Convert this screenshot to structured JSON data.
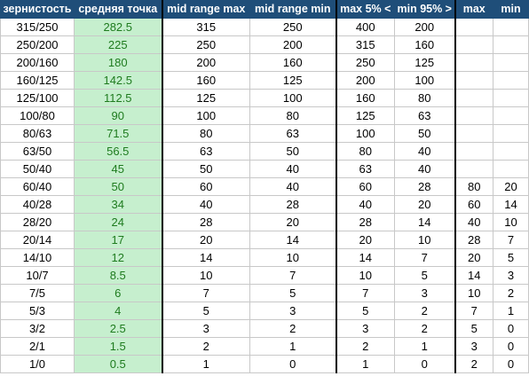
{
  "headers": [
    "зернистость",
    "средняя точка",
    "mid range max",
    "mid range min",
    "max 5% <",
    "min 95% >",
    "max",
    "min"
  ],
  "rows": [
    [
      "315/250",
      "282.5",
      "315",
      "250",
      "400",
      "200",
      "",
      ""
    ],
    [
      "250/200",
      "225",
      "250",
      "200",
      "315",
      "160",
      "",
      ""
    ],
    [
      "200/160",
      "180",
      "200",
      "160",
      "250",
      "125",
      "",
      ""
    ],
    [
      "160/125",
      "142.5",
      "160",
      "125",
      "200",
      "100",
      "",
      ""
    ],
    [
      "125/100",
      "112.5",
      "125",
      "100",
      "160",
      "80",
      "",
      ""
    ],
    [
      "100/80",
      "90",
      "100",
      "80",
      "125",
      "63",
      "",
      ""
    ],
    [
      "80/63",
      "71.5",
      "80",
      "63",
      "100",
      "50",
      "",
      ""
    ],
    [
      "63/50",
      "56.5",
      "63",
      "50",
      "80",
      "40",
      "",
      ""
    ],
    [
      "50/40",
      "45",
      "50",
      "40",
      "63",
      "40",
      "",
      ""
    ],
    [
      "60/40",
      "50",
      "60",
      "40",
      "60",
      "28",
      "80",
      "20"
    ],
    [
      "40/28",
      "34",
      "40",
      "28",
      "40",
      "20",
      "60",
      "14"
    ],
    [
      "28/20",
      "24",
      "28",
      "20",
      "28",
      "14",
      "40",
      "10"
    ],
    [
      "20/14",
      "17",
      "20",
      "14",
      "20",
      "10",
      "28",
      "7"
    ],
    [
      "14/10",
      "12",
      "14",
      "10",
      "14",
      "7",
      "20",
      "5"
    ],
    [
      "10/7",
      "8.5",
      "10",
      "7",
      "10",
      "5",
      "14",
      "3"
    ],
    [
      "7/5",
      "6",
      "7",
      "5",
      "7",
      "3",
      "10",
      "2"
    ],
    [
      "5/3",
      "4",
      "5",
      "3",
      "5",
      "2",
      "7",
      "1"
    ],
    [
      "3/2",
      "2.5",
      "3",
      "2",
      "3",
      "2",
      "5",
      "0"
    ],
    [
      "2/1",
      "1.5",
      "2",
      "1",
      "2",
      "1",
      "3",
      "0"
    ],
    [
      "1/0",
      "0.5",
      "1",
      "0",
      "1",
      "0",
      "2",
      "0"
    ]
  ],
  "colors": {
    "header_bg": "#1f4e79",
    "header_text": "#ffffff",
    "avg_col_bg": "#c6efce",
    "avg_col_text": "#1e7b1e"
  }
}
